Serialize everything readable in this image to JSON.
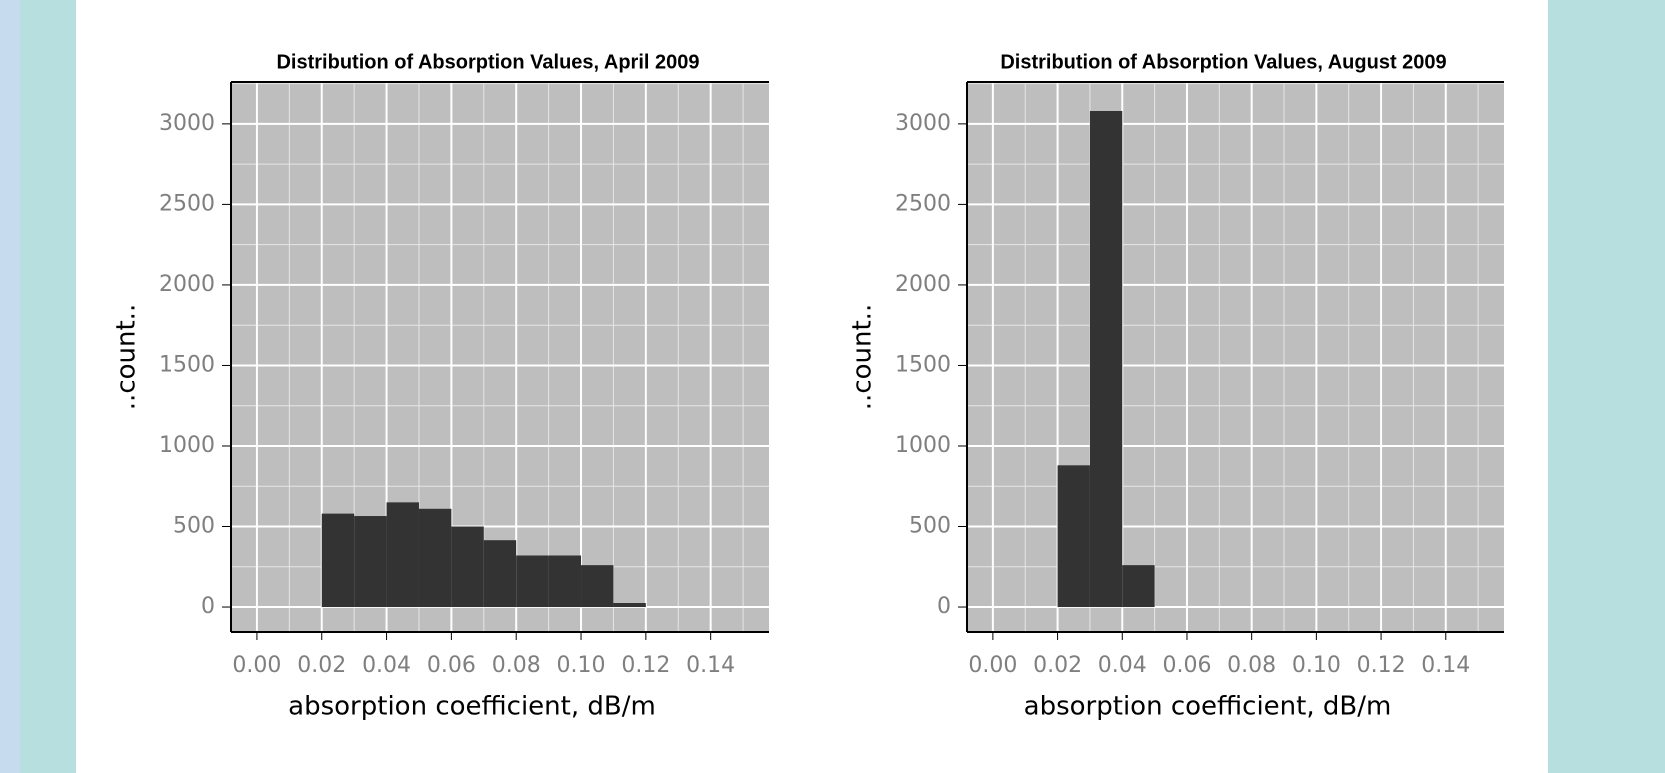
{
  "chart_data": [
    {
      "type": "histogram",
      "title": "Distribution of Absorption Values, April 2009",
      "xlabel": "absorption coefficient, dB/m",
      "ylabel": "..count..",
      "bins": [
        0.02,
        0.03,
        0.04,
        0.05,
        0.06,
        0.07,
        0.08,
        0.09,
        0.1,
        0.11,
        0.12
      ],
      "values": [
        580,
        565,
        650,
        610,
        500,
        415,
        320,
        320,
        260,
        25
      ],
      "color": "#333333",
      "background": "#bebebe",
      "grid": true,
      "xlim": [
        -0.008,
        0.158
      ],
      "xticks": [
        {
          "value": 0,
          "label": "0.00"
        },
        0.02,
        0.04,
        0.06,
        0.08,
        {
          "value": 0.1,
          "label": "0.10"
        },
        0.12,
        0.14
      ],
      "ylim": [
        -155,
        3260
      ],
      "yticks": [
        0,
        500,
        1000,
        1500,
        2000,
        2500,
        3000
      ]
    },
    {
      "type": "histogram",
      "title": "Distribution of Absorption Values, August 2009",
      "xlabel": "absorption coefficient, dB/m",
      "ylabel": "..count..",
      "bins": [
        0.02,
        0.03,
        0.04,
        0.05
      ],
      "values": [
        880,
        3080,
        260
      ],
      "color": "#333333",
      "background": "#bebebe",
      "grid": true,
      "xlim": [
        -0.008,
        0.158
      ],
      "xticks": [
        {
          "value": 0,
          "label": "0.00"
        },
        0.02,
        0.04,
        0.06,
        0.08,
        {
          "value": 0.1,
          "label": "0.10"
        },
        0.12,
        0.14
      ],
      "ylim": [
        -155,
        3260
      ],
      "yticks": [
        0,
        500,
        1000,
        1500,
        2000,
        2500,
        3000
      ]
    }
  ]
}
